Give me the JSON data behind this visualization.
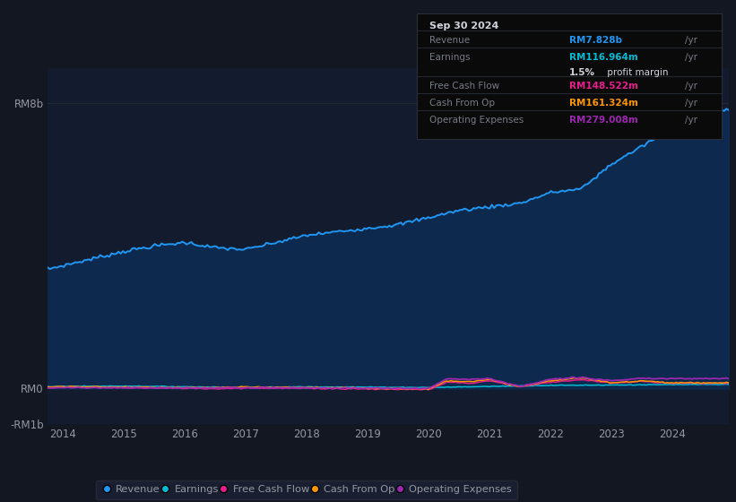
{
  "bg_color": "#131722",
  "plot_bg_color": "#131c2e",
  "text_color": "#9598a1",
  "grid_color": "#2a2e39",
  "revenue_color": "#2196f3",
  "earnings_color": "#00bcd4",
  "free_cash_flow_color": "#e91e8c",
  "cash_from_op_color": "#ff9800",
  "operating_expenses_color": "#9c27b0",
  "revenue_fill_color": "#0d2a4e",
  "legend_entries": [
    "Revenue",
    "Earnings",
    "Free Cash Flow",
    "Cash From Op",
    "Operating Expenses"
  ],
  "tooltip_title": "Sep 30 2024",
  "label_color": "#787b86",
  "white": "#d1d4dc",
  "x_ticks": [
    2014,
    2015,
    2016,
    2017,
    2018,
    2019,
    2020,
    2021,
    2022,
    2023,
    2024
  ],
  "ylim_min": -1000000000,
  "ylim_max": 9000000000,
  "xlim_min": 2013.75,
  "xlim_max": 2024.92
}
